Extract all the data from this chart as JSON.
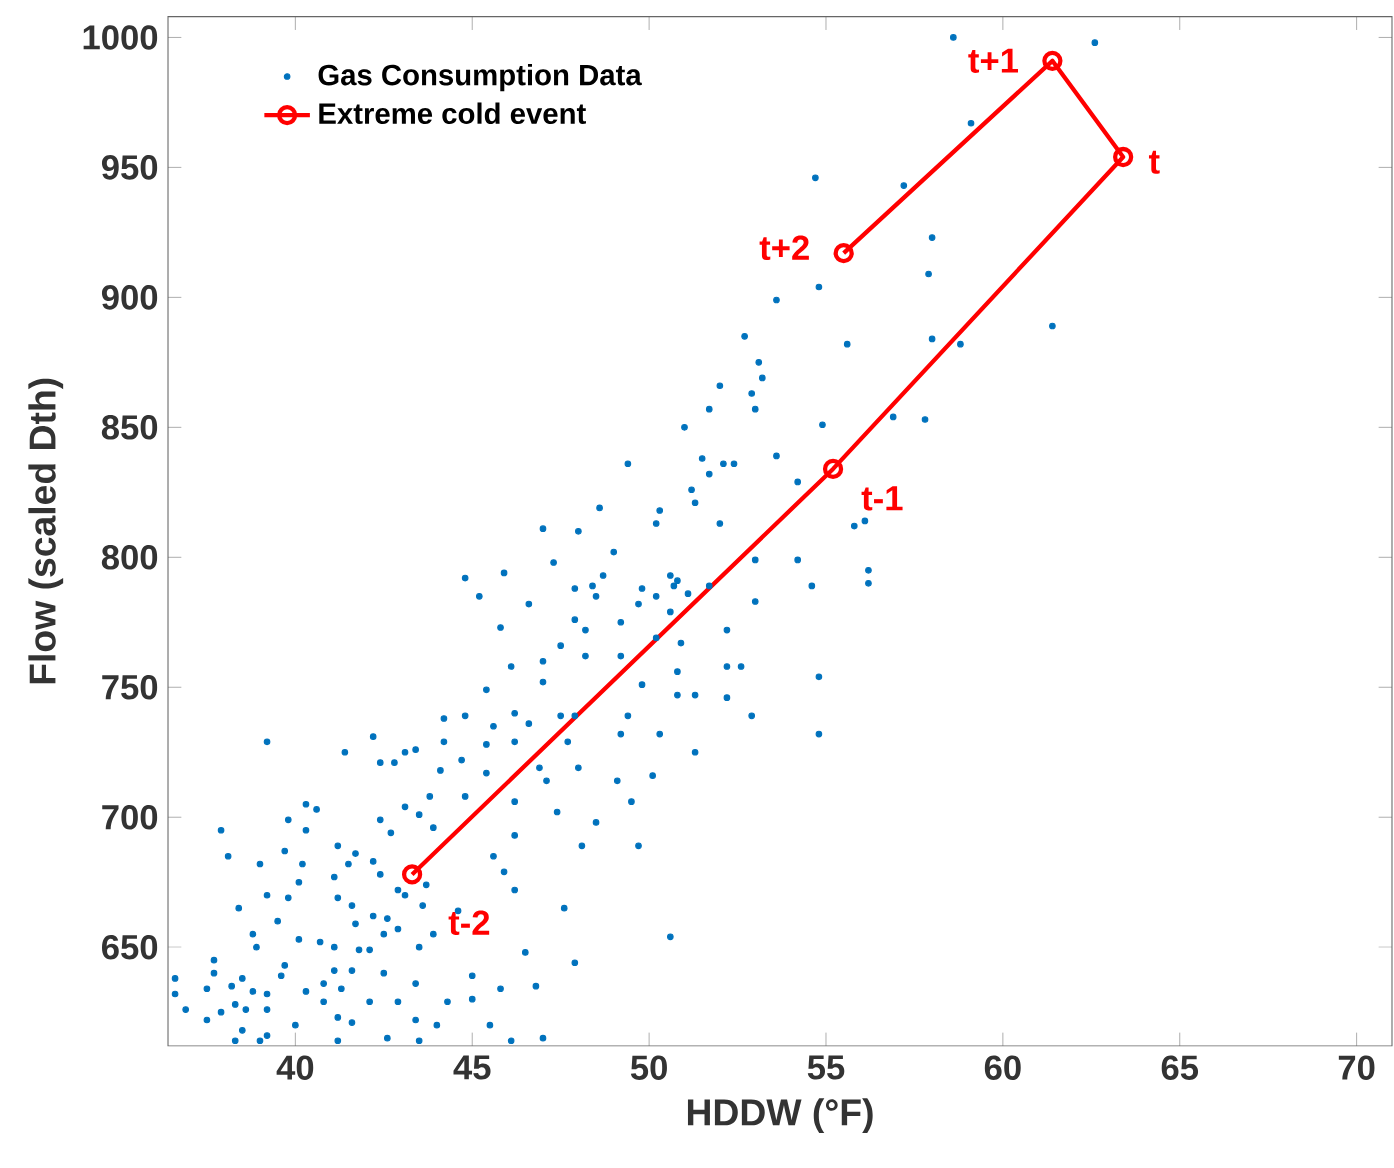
{
  "chart_data": {
    "type": "scatter",
    "xlabel": "HDDW (°F)",
    "ylabel": "Flow (scaled Dth)",
    "xlim": [
      36.4,
      71
    ],
    "ylim": [
      612,
      1008
    ],
    "xticks": [
      40,
      45,
      50,
      55,
      60,
      65,
      70
    ],
    "yticks": [
      650,
      700,
      750,
      800,
      850,
      900,
      950,
      1000
    ],
    "grid": false,
    "legend": "top left",
    "series": [
      {
        "name": "Gas Consumption Data",
        "color": "#0072bd",
        "marker": "circle",
        "x": [
          58.6,
          62.6,
          59.1,
          54.7,
          57.2,
          58.0,
          57.9,
          54.8,
          53.6,
          61.4,
          52.7,
          55.6,
          58.0,
          58.8,
          53.1,
          53.2,
          52.0,
          52.9,
          51.7,
          53.0,
          51.0,
          54.9,
          56.9,
          57.8,
          53.6,
          51.5,
          52.1,
          52.4,
          49.4,
          51.7,
          54.2,
          51.2,
          51.3,
          48.6,
          50.3,
          50.2,
          52.0,
          47.0,
          48.0,
          55.8,
          47.3,
          49.0,
          53.0,
          54.2,
          44.8,
          45.9,
          47.9,
          48.4,
          48.7,
          48.5,
          50.6,
          50.8,
          50.7,
          49.8,
          50.2,
          51.1,
          51.7,
          45.2,
          46.6,
          49.7,
          47.9,
          49.2,
          50.6,
          53.0,
          45.8,
          48.2,
          50.2,
          52.2,
          50.9,
          47.5,
          48.2,
          49.2,
          47.0,
          46.1,
          47.0,
          49.8,
          50.8,
          52.2,
          52.6,
          54.8,
          45.4,
          50.8,
          51.3,
          52.2,
          49.4,
          44.8,
          46.2,
          46.6,
          47.5,
          47.9,
          47.7,
          52.9,
          49.2,
          50.3,
          45.6,
          45.4,
          46.2,
          44.7,
          46.9,
          51.3,
          48.0,
          47.1,
          45.4,
          49.1,
          50.1,
          44.8,
          46.2,
          47.4,
          49.5,
          48.5,
          46.2,
          48.1,
          49.7,
          45.6,
          39.2,
          41.4,
          42.2,
          42.4,
          42.8,
          43.1,
          43.4,
          44.2,
          44.2,
          44.1,
          40.3,
          40.6,
          39.8,
          37.9,
          38.1,
          40.3,
          41.2,
          41.7,
          42.4,
          42.7,
          43.1,
          43.8,
          43.5,
          43.9,
          39.0,
          39.7,
          40.2,
          41.1,
          41.5,
          42.2,
          42.4,
          40.1,
          39.2,
          39.8,
          38.4,
          41.2,
          41.6,
          41.7,
          42.2,
          42.6,
          42.9,
          43.1,
          43.7,
          43.6,
          42.9,
          42.5,
          39.5,
          38.8,
          40.1,
          40.7,
          41.1,
          38.9,
          41.8,
          42.1,
          43.5,
          43.9,
          44.6,
          37.7,
          39.7,
          37.7,
          38.5,
          37.5,
          38.2,
          38.8,
          39.2,
          39.6,
          40.3,
          40.8,
          41.1,
          41.3,
          41.6,
          42.5,
          43.4,
          45.0,
          45.8,
          46.8,
          46.5,
          47.6,
          47.9,
          45.9,
          46.2,
          36.6,
          36.6,
          36.9,
          37.5,
          37.9,
          38.3,
          38.6,
          39.2,
          38.5,
          39.2,
          40.0,
          40.8,
          41.2,
          41.6,
          42.1,
          42.6,
          42.9,
          43.4,
          44.0,
          44.3,
          45.0,
          45.5,
          47.0,
          38.3,
          39.0,
          46.1,
          43.5,
          41.2,
          50.6,
          56.1,
          56.2,
          56.2,
          54.8,
          54.6
        ],
        "values": [
          1000,
          998,
          967,
          946,
          943,
          923,
          909,
          904,
          899,
          889,
          885,
          882,
          884,
          882,
          875,
          869,
          866,
          863,
          857,
          857,
          850,
          851,
          854,
          853,
          839,
          838,
          836,
          836,
          836,
          832,
          829,
          826,
          821,
          819,
          818,
          813,
          813,
          811,
          810,
          812,
          798,
          802,
          799,
          799,
          792,
          794,
          788,
          789,
          793,
          785,
          793,
          791,
          789,
          788,
          785,
          786,
          789,
          785,
          782,
          782,
          776,
          775,
          779,
          783,
          773,
          772,
          769,
          772,
          767,
          766,
          762,
          762,
          760,
          758,
          752,
          751,
          756,
          758,
          758,
          754,
          749,
          747,
          747,
          746,
          739,
          739,
          740,
          736,
          739,
          739,
          729,
          739,
          732,
          732,
          735,
          728,
          729,
          722,
          719,
          725,
          719,
          714,
          717,
          714,
          716,
          708,
          706,
          702,
          706,
          698,
          693,
          689,
          689,
          685,
          729,
          725,
          731,
          721,
          721,
          725,
          726,
          738,
          729,
          718,
          705,
          703,
          699,
          695,
          685,
          695,
          689,
          686,
          699,
          694,
          704,
          708,
          701,
          696,
          682,
          687,
          682,
          677,
          682,
          683,
          678,
          675,
          670,
          669,
          665,
          669,
          666,
          659,
          662,
          661,
          672,
          670,
          674,
          666,
          657,
          655,
          660,
          655,
          653,
          652,
          650,
          650,
          649,
          649,
          650,
          655,
          664,
          645,
          643,
          640,
          638,
          634,
          635,
          633,
          632,
          639,
          633,
          636,
          641,
          634,
          641,
          640,
          636,
          639,
          634,
          635,
          648,
          665,
          644,
          679,
          672,
          638,
          632,
          626,
          622,
          625,
          628,
          626,
          626,
          618,
          616,
          620,
          629,
          623,
          621,
          629,
          615,
          629,
          622,
          620,
          629,
          630,
          620,
          615,
          614,
          614,
          614,
          614,
          614,
          654,
          814,
          795,
          790,
          732,
          789
        ]
      },
      {
        "name": "Extreme cold event",
        "type": "line",
        "color": "#ff0000",
        "marker": "circle",
        "line_style": "solid",
        "x": [
          43.3,
          55.2,
          63.4,
          61.4,
          55.5
        ],
        "values": [
          678,
          834,
          954,
          991,
          917
        ]
      }
    ],
    "annotations": [
      {
        "text": "t-2",
        "x": 43.3,
        "y": 678
      },
      {
        "text": "t-1",
        "x": 55.2,
        "y": 834
      },
      {
        "text": "t",
        "x": 63.4,
        "y": 954
      },
      {
        "text": "t+1",
        "x": 61.4,
        "y": 991
      },
      {
        "text": "t+2",
        "x": 55.5,
        "y": 917
      }
    ]
  }
}
